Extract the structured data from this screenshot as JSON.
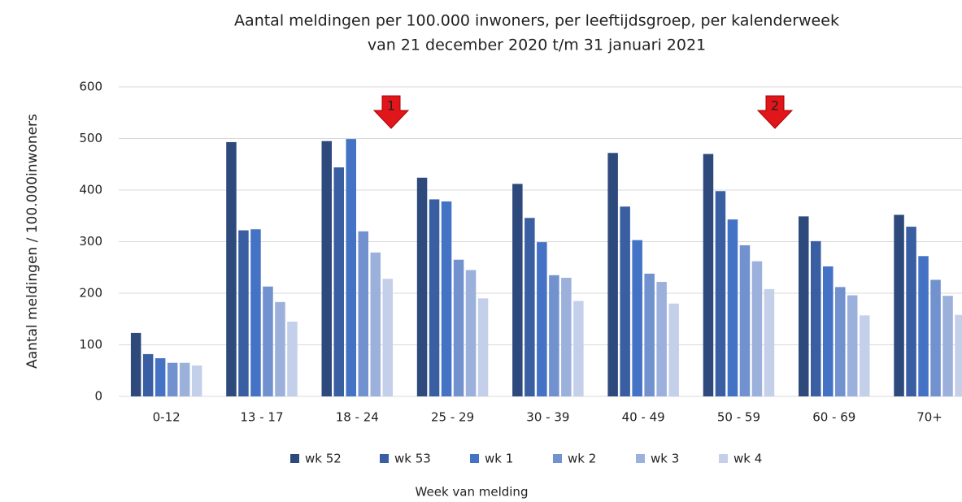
{
  "chart_data": {
    "type": "bar",
    "title": "Aantal meldingen per 100.000 inwoners, per leeftijdsgroep, per kalenderweek",
    "subtitle": "van 21 december 2020 t/m 31 januari 2021",
    "x_label": "Week van melding",
    "y_label": "Aantal meldingen / 100.000inwoners",
    "categories": [
      "0-12",
      "13 - 17",
      "18 - 24",
      "25 - 29",
      "30 - 39",
      "40 - 49",
      "50 - 59",
      "60 - 69",
      "70+"
    ],
    "series": [
      {
        "name": "wk 52",
        "color": "#2e4a7d",
        "values": [
          123,
          493,
          495,
          424,
          412,
          472,
          470,
          349,
          352
        ]
      },
      {
        "name": "wk 53",
        "color": "#3a5ea2",
        "values": [
          82,
          322,
          444,
          382,
          346,
          368,
          398,
          301,
          329
        ]
      },
      {
        "name": "wk 1",
        "color": "#4472c4",
        "values": [
          74,
          324,
          499,
          378,
          299,
          303,
          343,
          252,
          272
        ]
      },
      {
        "name": "wk 2",
        "color": "#7191cf",
        "values": [
          65,
          213,
          320,
          265,
          235,
          238,
          293,
          212,
          226
        ]
      },
      {
        "name": "wk 3",
        "color": "#9cb0dc",
        "values": [
          65,
          183,
          279,
          245,
          230,
          222,
          262,
          196,
          195
        ]
      },
      {
        "name": "wk 4",
        "color": "#c4cfea",
        "values": [
          60,
          145,
          228,
          190,
          185,
          180,
          208,
          157,
          158
        ]
      }
    ],
    "ylim": [
      0,
      600
    ],
    "yticks": [
      0,
      100,
      200,
      300,
      400,
      500,
      600
    ],
    "grid": true,
    "legend": "bottom",
    "annotations": [
      "1",
      "2"
    ]
  }
}
